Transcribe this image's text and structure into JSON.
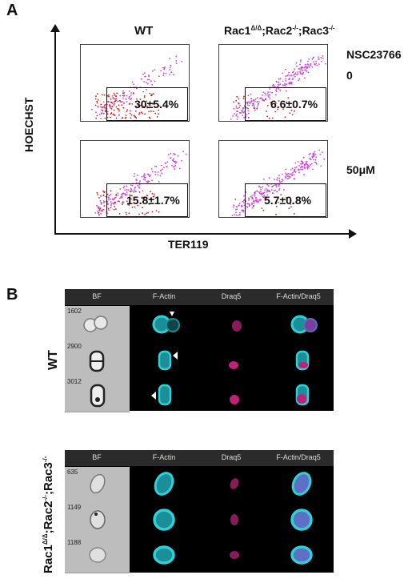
{
  "panelA": {
    "letter": "A",
    "col_wt": "WT",
    "col_ko_prefix": "Rac1",
    "col_ko_sup1": "Δ/Δ",
    "col_ko_mid": ";Rac2",
    "col_ko_sup2": "-/-",
    "col_ko_mid2": ";Rac3",
    "col_ko_sup3": "-/-",
    "treatment": "NSC23766",
    "dose0": "0",
    "dose50": "50μM",
    "ylabel": "HOECHST",
    "xlabel": "TER119",
    "percentages": [
      "30±5.4%",
      "6.6±0.7%",
      "15.8±1.7%",
      "5.7±0.8%"
    ]
  },
  "panelB": {
    "letter": "B",
    "headers": [
      "BF",
      "F-Actin",
      "Draq5",
      "F-Actin/Draq5"
    ],
    "wt_label": "WT",
    "wt_rows": [
      "1602",
      "2900",
      "3012"
    ],
    "ko_label_prefix": "Rac1",
    "ko_label_sup1": "Δ/Δ",
    "ko_label_mid": ";Rac2",
    "ko_label_sup2": "-/-",
    "ko_label_mid2": ";Rac3",
    "ko_label_sup3": "-/-",
    "ko_rows": [
      "635",
      "1149",
      "1188"
    ]
  },
  "colors": {
    "magenta": "#d23ce0",
    "red": "#d01818",
    "cyan": "#2fd0d8",
    "draq5": "#c0207a"
  }
}
